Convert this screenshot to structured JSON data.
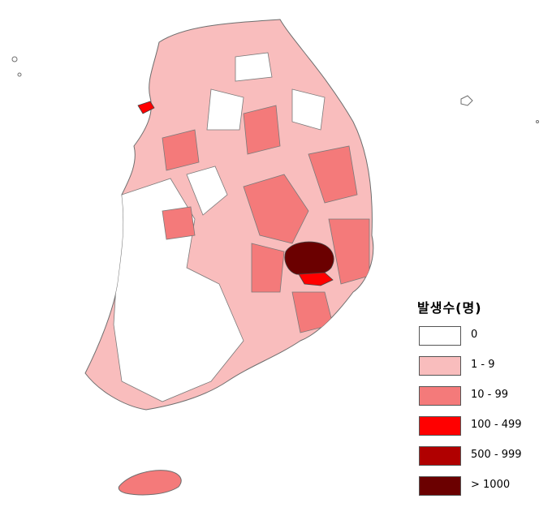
{
  "legend": {
    "title": "발생수(명)",
    "classes": [
      {
        "label": "0",
        "color": "#ffffff"
      },
      {
        "label": "1 - 9",
        "color": "#f9bdbd"
      },
      {
        "label": "10 - 99",
        "color": "#f47a7a"
      },
      {
        "label": "100 - 499",
        "color": "#ff0000"
      },
      {
        "label": "500 - 999",
        "color": "#b00000"
      },
      {
        "label": "> 1000",
        "color": "#6b0000"
      }
    ]
  },
  "map": {
    "region": "South Korea (mainland, Jeju, islands)",
    "boundary_color": "#6e6e6e",
    "district_level_symbols": [
      {
        "area": "Daegu area",
        "class": "> 1000"
      },
      {
        "area": "Gyeongsan area",
        "class": "100 - 499"
      },
      {
        "area": "Incheon island",
        "class": "100 - 499"
      }
    ]
  }
}
